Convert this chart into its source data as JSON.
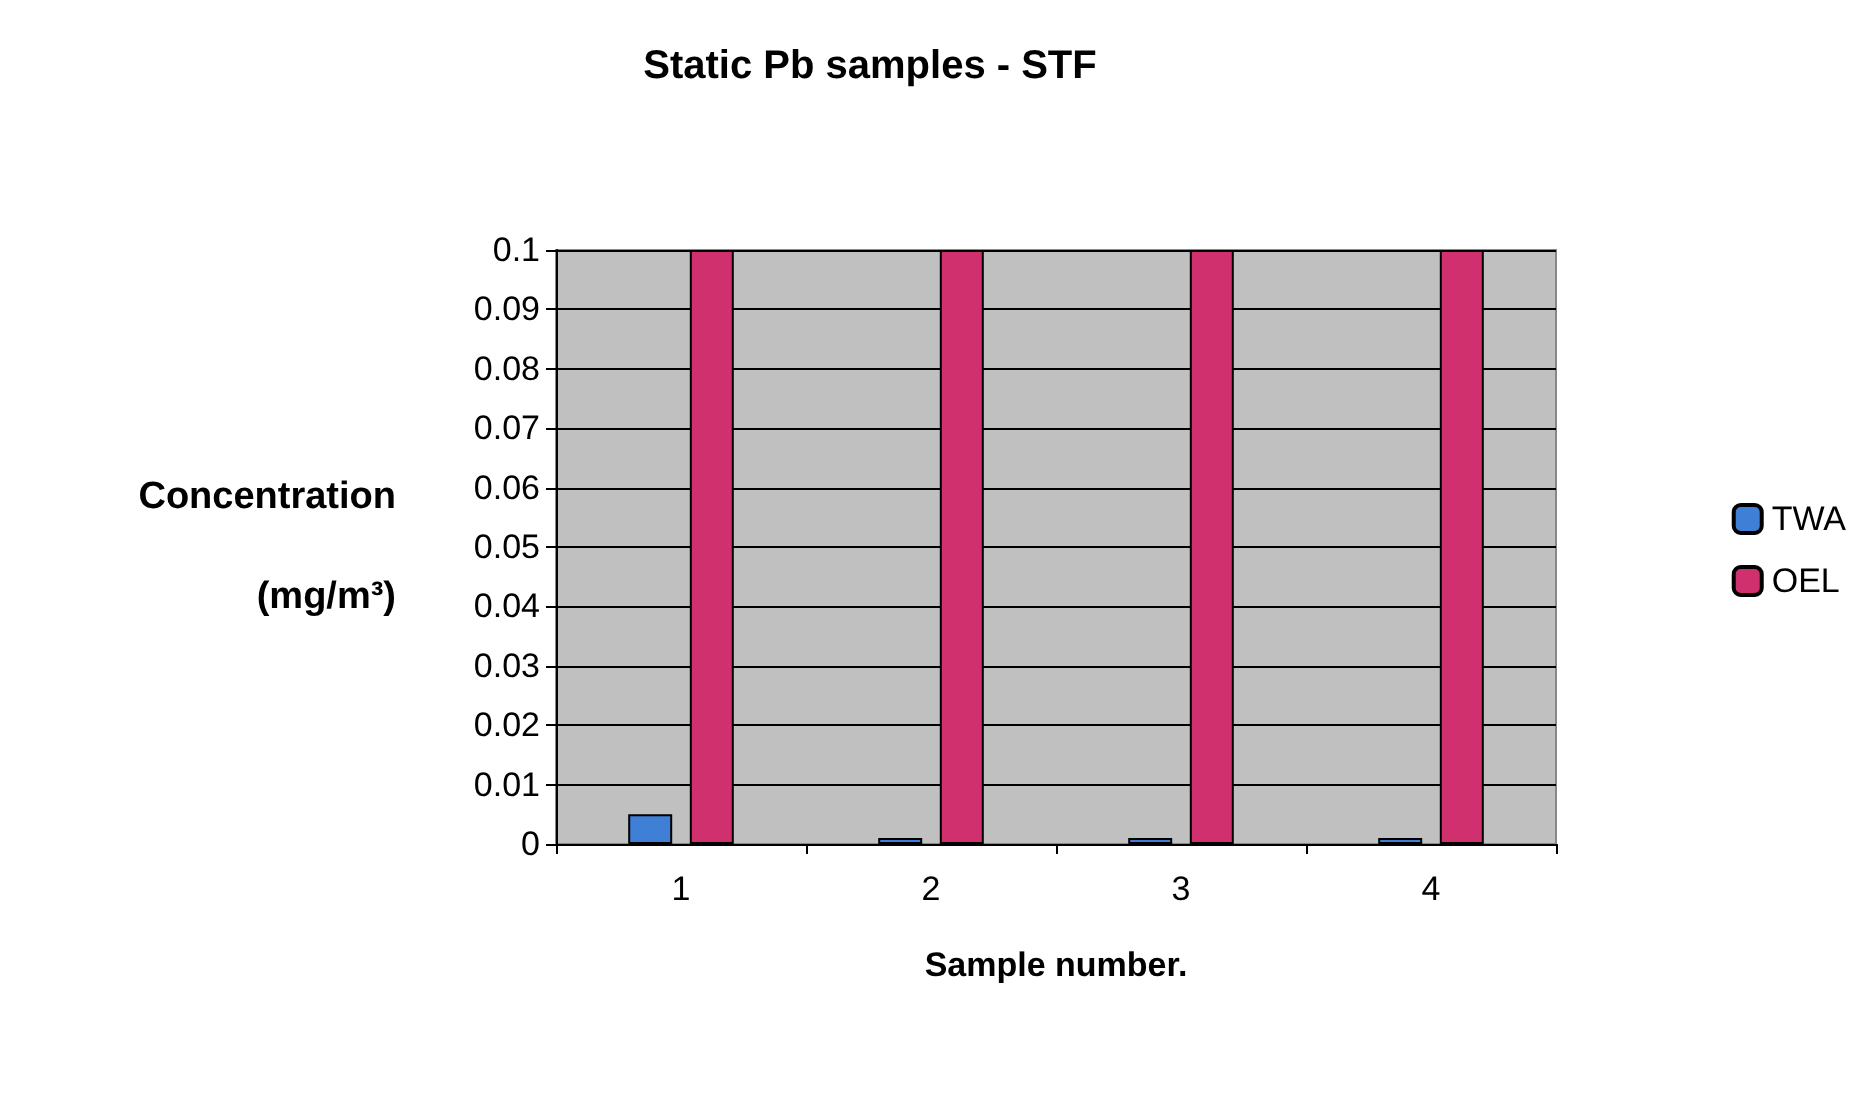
{
  "chart_data": {
    "type": "bar",
    "title": "Static Pb samples - STF",
    "xlabel": "Sample number.",
    "ylabel": "Concentration\n(mg/m³)",
    "categories": [
      "1",
      "2",
      "3",
      "4"
    ],
    "series": [
      {
        "name": "TWA",
        "color": "#3f7fd6",
        "values": [
          0.005,
          0.001,
          0.001,
          0.001
        ]
      },
      {
        "name": "OEL",
        "color": "#d1306e",
        "values": [
          0.1,
          0.1,
          0.1,
          0.1
        ]
      }
    ],
    "ylim": [
      0,
      0.1
    ],
    "yticks": [
      0,
      0.01,
      0.02,
      0.03,
      0.04,
      0.05,
      0.06,
      0.07,
      0.08,
      0.09,
      0.1
    ],
    "grid": "y",
    "legend": "right"
  }
}
